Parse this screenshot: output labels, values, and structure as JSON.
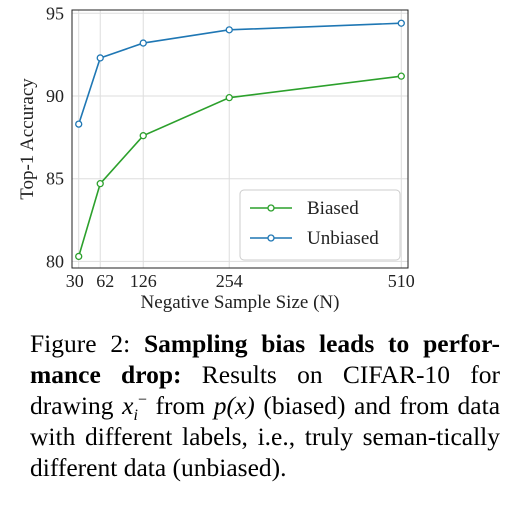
{
  "chart_data": {
    "type": "line",
    "xlabel": "Negative Sample Size (N)",
    "ylabel": "Top-1 Accuracy",
    "xlim": [
      20,
      520
    ],
    "ylim": [
      79.6,
      95.2
    ],
    "x_ticks": [
      30,
      62,
      126,
      254,
      510
    ],
    "x_tick_labels": [
      "30",
      "62",
      "126",
      "254",
      "510"
    ],
    "y_ticks": [
      80,
      85,
      90,
      95
    ],
    "y_tick_labels": [
      "80",
      "85",
      "90",
      "95"
    ],
    "grid": true,
    "legend_position": "lower-right",
    "series": [
      {
        "name": "Biased",
        "color": "#2ca02c",
        "x": [
          30,
          62,
          126,
          254,
          510
        ],
        "y": [
          80.3,
          84.7,
          87.6,
          89.9,
          91.2
        ]
      },
      {
        "name": "Unbiased",
        "color": "#1f77b4",
        "x": [
          30,
          62,
          126,
          254,
          510
        ],
        "y": [
          88.3,
          92.3,
          93.2,
          94.0,
          94.4
        ]
      }
    ]
  },
  "caption": {
    "prefix": "Figure 2:",
    "bold": "Sampling bias leads to perfor-mance drop:",
    "text1": "Results on CIFAR-10 for drawing",
    "x_sym": "x",
    "sub_sym": "i",
    "sup_sym": "−",
    "text2": "from",
    "px_expr": "p(x)",
    "text3": "(biased) and from data with different labels, i.e., truly seman-tically different data (unbiased)."
  }
}
